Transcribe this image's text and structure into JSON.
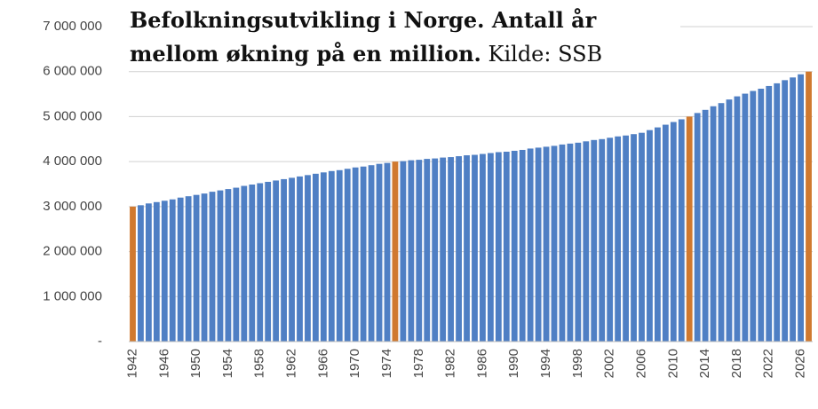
{
  "chart_data": {
    "type": "bar",
    "title": "Befolkningsutvikling i Norge. Antall år mellom økning på en million.",
    "source": "Kilde: SSB",
    "categories": [
      "1942",
      null,
      null,
      null,
      "1946",
      null,
      null,
      null,
      "1950",
      null,
      null,
      null,
      "1954",
      null,
      null,
      null,
      "1958",
      null,
      null,
      null,
      "1962",
      null,
      null,
      null,
      "1966",
      null,
      null,
      null,
      "1970",
      null,
      null,
      null,
      "1974",
      null,
      null,
      null,
      "1978",
      null,
      null,
      null,
      "1982",
      null,
      null,
      null,
      "1986",
      null,
      null,
      null,
      "1990",
      null,
      null,
      null,
      "1994",
      null,
      null,
      null,
      "1998",
      null,
      null,
      null,
      "2002",
      null,
      null,
      null,
      "2006",
      null,
      null,
      null,
      "2010",
      null,
      null,
      null,
      "2014",
      null,
      null,
      null,
      "2018",
      null,
      null,
      null,
      "2022",
      null,
      null,
      null,
      "2026",
      null
    ],
    "values": [
      3000000,
      3030000,
      3070000,
      3100000,
      3130000,
      3160000,
      3200000,
      3230000,
      3260000,
      3290000,
      3330000,
      3360000,
      3390000,
      3420000,
      3460000,
      3490000,
      3520000,
      3550000,
      3580000,
      3610000,
      3640000,
      3670000,
      3700000,
      3730000,
      3760000,
      3790000,
      3810000,
      3840000,
      3870000,
      3890000,
      3920000,
      3950000,
      3970000,
      4000000,
      4010000,
      4030000,
      4040000,
      4060000,
      4070000,
      4090000,
      4100000,
      4120000,
      4140000,
      4150000,
      4170000,
      4190000,
      4210000,
      4220000,
      4240000,
      4260000,
      4290000,
      4310000,
      4330000,
      4350000,
      4380000,
      4400000,
      4420000,
      4450000,
      4480000,
      4500000,
      4530000,
      4560000,
      4580000,
      4610000,
      4640000,
      4700000,
      4760000,
      4820000,
      4880000,
      4940000,
      5000000,
      5080000,
      5150000,
      5230000,
      5300000,
      5380000,
      5450000,
      5510000,
      5570000,
      5620000,
      5680000,
      5740000,
      5810000,
      5870000,
      5940000,
      6000000
    ],
    "colors": [
      "#d0792f",
      "#4f7fc4",
      "#4f7fc4",
      "#4f7fc4",
      "#4f7fc4",
      "#4f7fc4",
      "#4f7fc4",
      "#4f7fc4",
      "#4f7fc4",
      "#4f7fc4",
      "#4f7fc4",
      "#4f7fc4",
      "#4f7fc4",
      "#4f7fc4",
      "#4f7fc4",
      "#4f7fc4",
      "#4f7fc4",
      "#4f7fc4",
      "#4f7fc4",
      "#4f7fc4",
      "#4f7fc4",
      "#4f7fc4",
      "#4f7fc4",
      "#4f7fc4",
      "#4f7fc4",
      "#4f7fc4",
      "#4f7fc4",
      "#4f7fc4",
      "#4f7fc4",
      "#4f7fc4",
      "#4f7fc4",
      "#4f7fc4",
      "#4f7fc4",
      "#d0792f",
      "#4f7fc4",
      "#4f7fc4",
      "#4f7fc4",
      "#4f7fc4",
      "#4f7fc4",
      "#4f7fc4",
      "#4f7fc4",
      "#4f7fc4",
      "#4f7fc4",
      "#4f7fc4",
      "#4f7fc4",
      "#4f7fc4",
      "#4f7fc4",
      "#4f7fc4",
      "#4f7fc4",
      "#4f7fc4",
      "#4f7fc4",
      "#4f7fc4",
      "#4f7fc4",
      "#4f7fc4",
      "#4f7fc4",
      "#4f7fc4",
      "#4f7fc4",
      "#4f7fc4",
      "#4f7fc4",
      "#4f7fc4",
      "#4f7fc4",
      "#4f7fc4",
      "#4f7fc4",
      "#4f7fc4",
      "#4f7fc4",
      "#4f7fc4",
      "#4f7fc4",
      "#4f7fc4",
      "#4f7fc4",
      "#4f7fc4",
      "#d0792f",
      "#4f7fc4",
      "#4f7fc4",
      "#4f7fc4",
      "#4f7fc4",
      "#4f7fc4",
      "#4f7fc4",
      "#4f7fc4",
      "#4f7fc4",
      "#4f7fc4",
      "#4f7fc4",
      "#4f7fc4",
      "#4f7fc4",
      "#4f7fc4",
      "#4f7fc4",
      "#d0792f"
    ],
    "ylim": [
      0,
      7000000
    ],
    "yticks": [
      {
        "value": 0,
        "label": "-"
      },
      {
        "value": 1000000,
        "label": "1 000 000"
      },
      {
        "value": 2000000,
        "label": "2 000 000"
      },
      {
        "value": 3000000,
        "label": "3 000 000"
      },
      {
        "value": 4000000,
        "label": "4 000 000"
      },
      {
        "value": 5000000,
        "label": "5 000 000"
      },
      {
        "value": 6000000,
        "label": "6 000 000"
      },
      {
        "value": 7000000,
        "label": "7 000 000"
      }
    ],
    "grid": true
  }
}
